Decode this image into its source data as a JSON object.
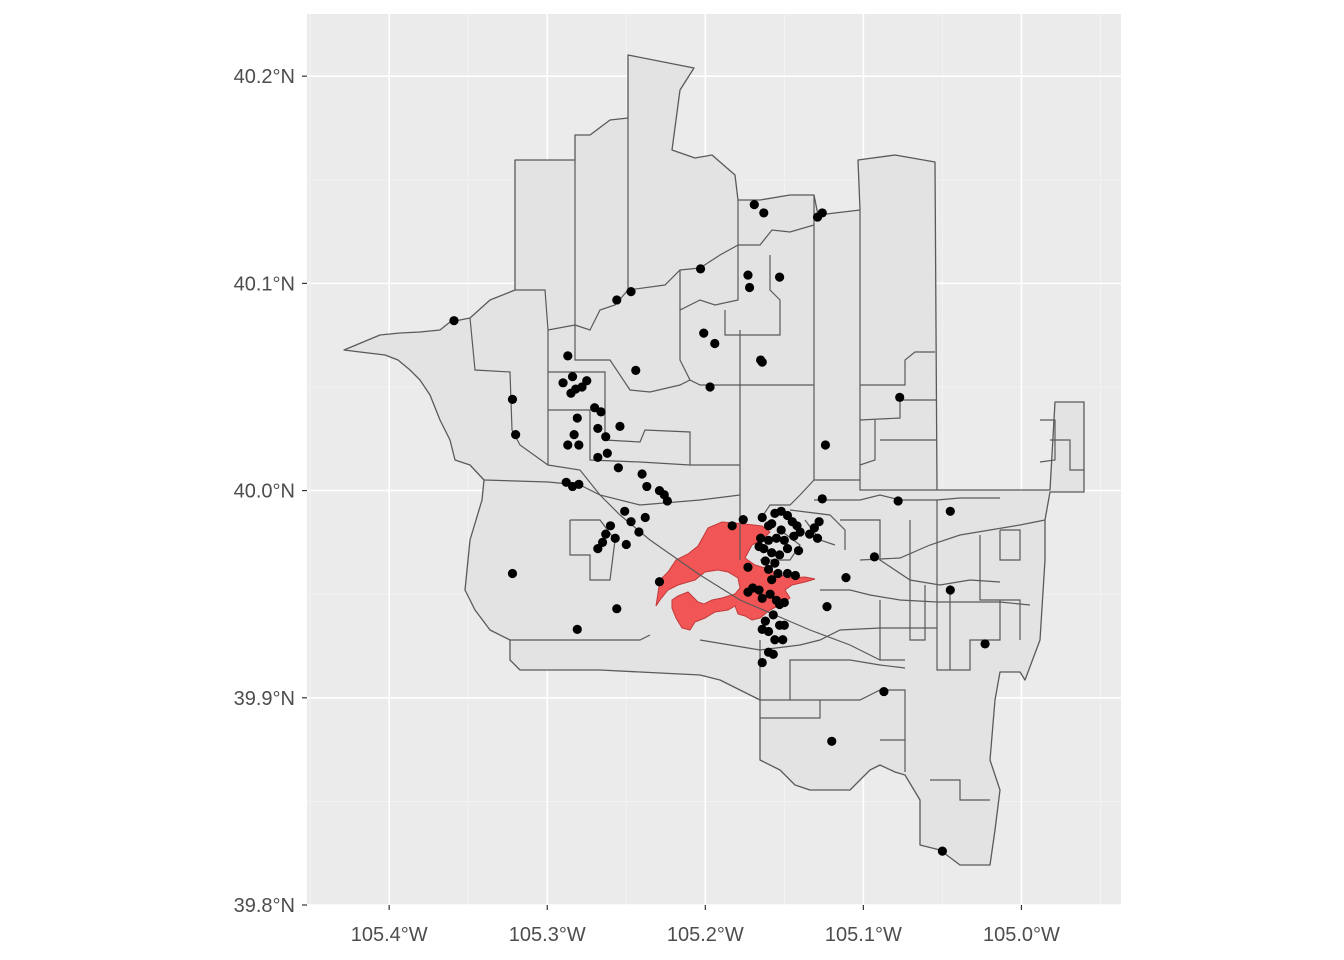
{
  "chart_data": {
    "type": "scatter",
    "subtype": "map",
    "title": "",
    "xlabel": "",
    "ylabel": "",
    "panel_background": "#ebebeb",
    "polygon_fill": "#e3e3e3",
    "polygon_outline": "#5a5a5a",
    "highlight_fill": "#f25555",
    "point_color": "#000000",
    "xlim": [
      -105.452,
      -104.937
    ],
    "ylim": [
      39.8,
      40.23
    ],
    "x_ticks": [
      {
        "value": -105.4,
        "label": "105.4°W"
      },
      {
        "value": -105.3,
        "label": "105.3°W"
      },
      {
        "value": -105.2,
        "label": "105.2°W"
      },
      {
        "value": -105.1,
        "label": "105.1°W"
      },
      {
        "value": -105.0,
        "label": "105.0°W"
      }
    ],
    "y_ticks": [
      {
        "value": 39.8,
        "label": "39.8°N"
      },
      {
        "value": 39.9,
        "label": "39.9°N"
      },
      {
        "value": 40.0,
        "label": "40.0°N"
      },
      {
        "value": 40.1,
        "label": "40.1°N"
      },
      {
        "value": 40.2,
        "label": "40.2°N"
      }
    ],
    "points": [
      [
        -105.359,
        40.082
      ],
      [
        -105.322,
        40.044
      ],
      [
        -105.32,
        40.027
      ],
      [
        -105.322,
        39.96
      ],
      [
        -105.281,
        39.933
      ],
      [
        -105.256,
        39.943
      ],
      [
        -105.229,
        39.956
      ],
      [
        -105.256,
        40.092
      ],
      [
        -105.247,
        40.096
      ],
      [
        -105.244,
        40.058
      ],
      [
        -105.203,
        40.107
      ],
      [
        -105.201,
        40.076
      ],
      [
        -105.194,
        40.071
      ],
      [
        -105.197,
        40.05
      ],
      [
        -105.169,
        40.138
      ],
      [
        -105.163,
        40.134
      ],
      [
        -105.129,
        40.132
      ],
      [
        -105.126,
        40.134
      ],
      [
        -105.173,
        40.104
      ],
      [
        -105.172,
        40.098
      ],
      [
        -105.153,
        40.103
      ],
      [
        -105.164,
        40.062
      ],
      [
        -105.165,
        40.063
      ],
      [
        -105.077,
        40.045
      ],
      [
        -105.124,
        40.022
      ],
      [
        -105.078,
        39.995
      ],
      [
        -105.126,
        39.996
      ],
      [
        -105.045,
        39.99
      ],
      [
        -105.045,
        39.952
      ],
      [
        -105.023,
        39.926
      ],
      [
        -105.111,
        39.958
      ],
      [
        -105.093,
        39.968
      ],
      [
        -105.123,
        39.944
      ],
      [
        -105.087,
        39.903
      ],
      [
        -105.12,
        39.879
      ],
      [
        -105.05,
        39.826
      ],
      [
        -105.29,
        40.052
      ],
      [
        -105.284,
        40.055
      ],
      [
        -105.282,
        40.049
      ],
      [
        -105.287,
        40.065
      ],
      [
        -105.285,
        40.047
      ],
      [
        -105.278,
        40.05
      ],
      [
        -105.275,
        40.053
      ],
      [
        -105.27,
        40.04
      ],
      [
        -105.266,
        40.038
      ],
      [
        -105.281,
        40.035
      ],
      [
        -105.283,
        40.027
      ],
      [
        -105.287,
        40.022
      ],
      [
        -105.28,
        40.022
      ],
      [
        -105.268,
        40.03
      ],
      [
        -105.263,
        40.026
      ],
      [
        -105.254,
        40.031
      ],
      [
        -105.268,
        40.016
      ],
      [
        -105.262,
        40.018
      ],
      [
        -105.255,
        40.011
      ],
      [
        -105.288,
        40.004
      ],
      [
        -105.284,
        40.002
      ],
      [
        -105.28,
        40.003
      ],
      [
        -105.24,
        40.008
      ],
      [
        -105.237,
        40.002
      ],
      [
        -105.229,
        40.0
      ],
      [
        -105.226,
        39.998
      ],
      [
        -105.224,
        39.995
      ],
      [
        -105.251,
        39.99
      ],
      [
        -105.247,
        39.985
      ],
      [
        -105.238,
        39.987
      ],
      [
        -105.242,
        39.98
      ],
      [
        -105.26,
        39.983
      ],
      [
        -105.263,
        39.979
      ],
      [
        -105.257,
        39.977
      ],
      [
        -105.265,
        39.975
      ],
      [
        -105.268,
        39.972
      ],
      [
        -105.25,
        39.974
      ],
      [
        -105.183,
        39.983
      ],
      [
        -105.176,
        39.986
      ],
      [
        -105.164,
        39.987
      ],
      [
        -105.16,
        39.983
      ],
      [
        -105.156,
        39.989
      ],
      [
        -105.152,
        39.99
      ],
      [
        -105.148,
        39.988
      ],
      [
        -105.145,
        39.985
      ],
      [
        -105.142,
        39.983
      ],
      [
        -105.14,
        39.98
      ],
      [
        -105.144,
        39.978
      ],
      [
        -105.15,
        39.976
      ],
      [
        -105.155,
        39.977
      ],
      [
        -105.16,
        39.976
      ],
      [
        -105.165,
        39.977
      ],
      [
        -105.163,
        39.972
      ],
      [
        -105.158,
        39.97
      ],
      [
        -105.153,
        39.969
      ],
      [
        -105.148,
        39.972
      ],
      [
        -105.152,
        39.981
      ],
      [
        -105.158,
        39.984
      ],
      [
        -105.156,
        39.965
      ],
      [
        -105.162,
        39.966
      ],
      [
        -105.16,
        39.962
      ],
      [
        -105.154,
        39.96
      ],
      [
        -105.148,
        39.96
      ],
      [
        -105.143,
        39.959
      ],
      [
        -105.158,
        39.957
      ],
      [
        -105.131,
        39.982
      ],
      [
        -105.129,
        39.977
      ],
      [
        -105.134,
        39.979
      ],
      [
        -105.128,
        39.985
      ],
      [
        -105.173,
        39.963
      ],
      [
        -105.166,
        39.952
      ],
      [
        -105.159,
        39.95
      ],
      [
        -105.155,
        39.947
      ],
      [
        -105.164,
        39.948
      ],
      [
        -105.17,
        39.953
      ],
      [
        -105.173,
        39.951
      ],
      [
        -105.15,
        39.946
      ],
      [
        -105.153,
        39.945
      ],
      [
        -105.157,
        39.94
      ],
      [
        -105.162,
        39.937
      ],
      [
        -105.164,
        39.933
      ],
      [
        -105.16,
        39.932
      ],
      [
        -105.153,
        39.935
      ],
      [
        -105.15,
        39.935
      ],
      [
        -105.156,
        39.928
      ],
      [
        -105.151,
        39.928
      ],
      [
        -105.16,
        39.922
      ],
      [
        -105.157,
        39.921
      ],
      [
        -105.164,
        39.917
      ],
      [
        -105.166,
        39.973
      ],
      [
        -105.141,
        39.971
      ]
    ],
    "highlight_region": "burn-area polygon (red) centered near 105.19°W, 39.96°N"
  }
}
